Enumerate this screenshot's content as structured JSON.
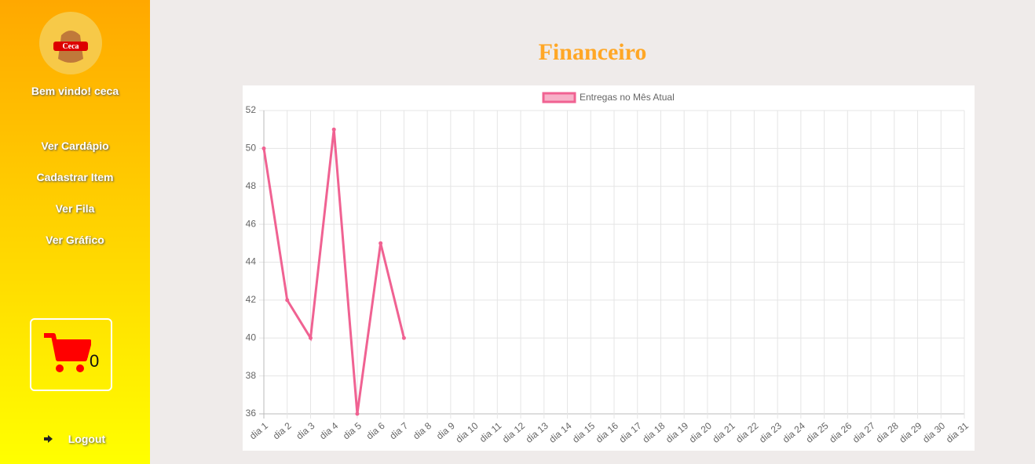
{
  "sidebar": {
    "logo_text": "Ceca",
    "greeting": "Bem vindo! ceca",
    "menu": [
      "Ver Cardápio",
      "Cadastrar Item",
      "Ver Fila",
      "Ver Gráfico"
    ],
    "cart_count": 0,
    "logout": "Logout"
  },
  "page_title": "Financeiro",
  "chart_data": {
    "type": "line",
    "categories": [
      "dia 1",
      "dia 2",
      "dia 3",
      "dia 4",
      "dia 5",
      "dia 6",
      "dia 7",
      "dia 8",
      "dia 9",
      "dia 10",
      "dia 11",
      "dia 12",
      "dia 13",
      "dia 14",
      "dia 15",
      "dia 16",
      "dia 17",
      "dia 18",
      "dia 19",
      "dia 20",
      "dia 21",
      "dia 22",
      "dia 23",
      "dia 24",
      "dia 25",
      "dia 26",
      "dia 27",
      "dia 28",
      "dia 29",
      "dia 30",
      "dia 31"
    ],
    "series": [
      {
        "name": "Entregas no Mês Atual",
        "color": "#f06292",
        "values": [
          50,
          42,
          40,
          51,
          36,
          45,
          40,
          null,
          null,
          null,
          null,
          null,
          null,
          null,
          null,
          null,
          null,
          null,
          null,
          null,
          null,
          null,
          null,
          null,
          null,
          null,
          null,
          null,
          null,
          null,
          null
        ]
      }
    ],
    "ylim": [
      36,
      52
    ],
    "yticks": [
      36,
      38,
      40,
      42,
      44,
      46,
      48,
      50,
      52
    ],
    "grid": true,
    "legend": "top"
  }
}
